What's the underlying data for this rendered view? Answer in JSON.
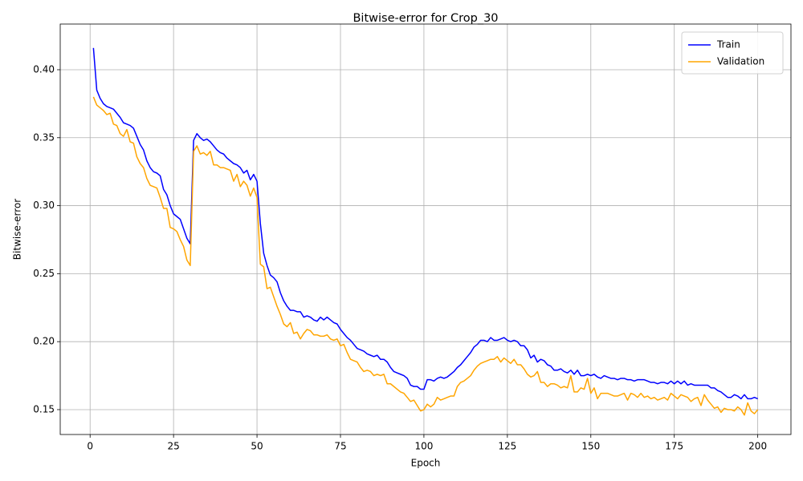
{
  "chart_data": {
    "type": "line",
    "title": "Bitwise-error for Crop_30",
    "x_label": "Epoch",
    "y_label": "Bitwise-error",
    "x": [
      1,
      2,
      3,
      4,
      5,
      6,
      7,
      8,
      9,
      10,
      11,
      12,
      13,
      14,
      15,
      16,
      17,
      18,
      19,
      20,
      21,
      22,
      23,
      24,
      25,
      26,
      27,
      28,
      29,
      30,
      31,
      32,
      33,
      34,
      35,
      36,
      37,
      38,
      39,
      40,
      41,
      42,
      43,
      44,
      45,
      46,
      47,
      48,
      49,
      50,
      51,
      52,
      53,
      54,
      55,
      56,
      57,
      58,
      59,
      60,
      61,
      62,
      63,
      64,
      65,
      66,
      67,
      68,
      69,
      70,
      71,
      72,
      73,
      74,
      75,
      76,
      77,
      78,
      79,
      80,
      81,
      82,
      83,
      84,
      85,
      86,
      87,
      88,
      89,
      90,
      91,
      92,
      93,
      94,
      95,
      96,
      97,
      98,
      99,
      100,
      101,
      102,
      103,
      104,
      105,
      106,
      107,
      108,
      109,
      110,
      111,
      112,
      113,
      114,
      115,
      116,
      117,
      118,
      119,
      120,
      121,
      122,
      123,
      124,
      125,
      126,
      127,
      128,
      129,
      130,
      131,
      132,
      133,
      134,
      135,
      136,
      137,
      138,
      139,
      140,
      141,
      142,
      143,
      144,
      145,
      146,
      147,
      148,
      149,
      150,
      151,
      152,
      153,
      154,
      155,
      156,
      157,
      158,
      159,
      160,
      161,
      162,
      163,
      164,
      165,
      166,
      167,
      168,
      169,
      170,
      171,
      172,
      173,
      174,
      175,
      176,
      177,
      178,
      179,
      180,
      181,
      182,
      183,
      184,
      185,
      186,
      187,
      188,
      189,
      190,
      191,
      192,
      193,
      194,
      195,
      196,
      197,
      198,
      199,
      200
    ],
    "series": [
      {
        "name": "Train",
        "color": "#0000ff",
        "values": [
          0.416,
          0.385,
          0.379,
          0.375,
          0.373,
          0.372,
          0.371,
          0.368,
          0.365,
          0.361,
          0.36,
          0.359,
          0.357,
          0.351,
          0.345,
          0.341,
          0.333,
          0.328,
          0.325,
          0.324,
          0.322,
          0.312,
          0.308,
          0.3,
          0.294,
          0.292,
          0.29,
          0.283,
          0.276,
          0.272,
          0.348,
          0.353,
          0.35,
          0.348,
          0.349,
          0.347,
          0.344,
          0.341,
          0.339,
          0.338,
          0.335,
          0.333,
          0.331,
          0.33,
          0.328,
          0.324,
          0.326,
          0.319,
          0.323,
          0.318,
          0.287,
          0.265,
          0.256,
          0.249,
          0.247,
          0.244,
          0.236,
          0.23,
          0.226,
          0.223,
          0.223,
          0.222,
          0.222,
          0.218,
          0.219,
          0.218,
          0.216,
          0.215,
          0.218,
          0.216,
          0.218,
          0.216,
          0.214,
          0.213,
          0.209,
          0.206,
          0.203,
          0.201,
          0.198,
          0.195,
          0.194,
          0.193,
          0.191,
          0.19,
          0.189,
          0.19,
          0.187,
          0.187,
          0.185,
          0.181,
          0.178,
          0.177,
          0.176,
          0.175,
          0.173,
          0.168,
          0.167,
          0.167,
          0.165,
          0.165,
          0.172,
          0.172,
          0.171,
          0.173,
          0.174,
          0.173,
          0.174,
          0.176,
          0.178,
          0.181,
          0.183,
          0.186,
          0.189,
          0.192,
          0.196,
          0.198,
          0.201,
          0.201,
          0.2,
          0.203,
          0.201,
          0.201,
          0.202,
          0.203,
          0.201,
          0.2,
          0.201,
          0.2,
          0.197,
          0.197,
          0.194,
          0.188,
          0.19,
          0.185,
          0.187,
          0.186,
          0.183,
          0.182,
          0.179,
          0.179,
          0.18,
          0.178,
          0.177,
          0.179,
          0.176,
          0.179,
          0.175,
          0.175,
          0.176,
          0.175,
          0.176,
          0.174,
          0.173,
          0.175,
          0.174,
          0.173,
          0.173,
          0.172,
          0.173,
          0.173,
          0.172,
          0.172,
          0.171,
          0.172,
          0.172,
          0.172,
          0.171,
          0.17,
          0.17,
          0.169,
          0.17,
          0.17,
          0.169,
          0.171,
          0.169,
          0.171,
          0.169,
          0.171,
          0.168,
          0.169,
          0.168,
          0.168,
          0.168,
          0.168,
          0.168,
          0.166,
          0.166,
          0.164,
          0.163,
          0.161,
          0.159,
          0.159,
          0.161,
          0.16,
          0.158,
          0.161,
          0.158,
          0.158,
          0.159,
          0.158
        ]
      },
      {
        "name": "Validation",
        "color": "#ffa500",
        "values": [
          0.38,
          0.374,
          0.372,
          0.37,
          0.367,
          0.368,
          0.36,
          0.359,
          0.353,
          0.351,
          0.356,
          0.347,
          0.346,
          0.336,
          0.331,
          0.328,
          0.32,
          0.315,
          0.314,
          0.313,
          0.306,
          0.298,
          0.298,
          0.284,
          0.283,
          0.281,
          0.275,
          0.27,
          0.26,
          0.256,
          0.34,
          0.344,
          0.338,
          0.339,
          0.337,
          0.34,
          0.33,
          0.33,
          0.328,
          0.328,
          0.327,
          0.326,
          0.318,
          0.323,
          0.314,
          0.318,
          0.315,
          0.307,
          0.313,
          0.306,
          0.257,
          0.255,
          0.239,
          0.24,
          0.233,
          0.226,
          0.22,
          0.213,
          0.211,
          0.214,
          0.206,
          0.207,
          0.202,
          0.206,
          0.209,
          0.208,
          0.205,
          0.205,
          0.204,
          0.204,
          0.205,
          0.202,
          0.201,
          0.202,
          0.197,
          0.198,
          0.192,
          0.187,
          0.186,
          0.185,
          0.181,
          0.178,
          0.179,
          0.178,
          0.175,
          0.176,
          0.175,
          0.176,
          0.169,
          0.169,
          0.167,
          0.165,
          0.163,
          0.162,
          0.159,
          0.156,
          0.157,
          0.153,
          0.149,
          0.15,
          0.154,
          0.152,
          0.154,
          0.159,
          0.157,
          0.158,
          0.159,
          0.16,
          0.16,
          0.167,
          0.17,
          0.171,
          0.173,
          0.175,
          0.179,
          0.182,
          0.184,
          0.185,
          0.186,
          0.187,
          0.187,
          0.189,
          0.185,
          0.188,
          0.186,
          0.184,
          0.187,
          0.183,
          0.183,
          0.18,
          0.176,
          0.174,
          0.175,
          0.178,
          0.17,
          0.17,
          0.167,
          0.169,
          0.169,
          0.168,
          0.166,
          0.167,
          0.166,
          0.175,
          0.163,
          0.163,
          0.166,
          0.165,
          0.173,
          0.162,
          0.166,
          0.158,
          0.162,
          0.162,
          0.162,
          0.161,
          0.16,
          0.16,
          0.161,
          0.162,
          0.157,
          0.162,
          0.161,
          0.159,
          0.162,
          0.159,
          0.16,
          0.158,
          0.159,
          0.157,
          0.158,
          0.159,
          0.157,
          0.162,
          0.16,
          0.158,
          0.161,
          0.16,
          0.159,
          0.156,
          0.158,
          0.159,
          0.153,
          0.161,
          0.157,
          0.154,
          0.151,
          0.152,
          0.148,
          0.151,
          0.15,
          0.15,
          0.149,
          0.152,
          0.15,
          0.146,
          0.155,
          0.149,
          0.147,
          0.15
        ]
      }
    ],
    "xlim": [
      -8.95,
      209.95
    ],
    "ylim": [
      0.1317,
      0.4336
    ],
    "xticks": [
      0,
      25,
      50,
      75,
      100,
      125,
      150,
      175,
      200
    ],
    "yticks": [
      0.15,
      {
        "value": 0.2,
        "label": "0.20"
      },
      0.25,
      {
        "value": 0.3,
        "label": "0.30"
      },
      0.35,
      {
        "value": 0.4,
        "label": "0.40"
      }
    ],
    "grid": true,
    "legend": "upper right"
  }
}
